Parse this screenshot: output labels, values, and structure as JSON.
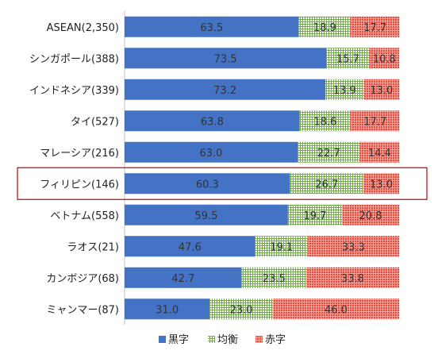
{
  "chart_data": {
    "type": "bar",
    "orientation": "horizontal",
    "stacked": "percent",
    "categories": [
      "ASEAN(2,350)",
      "シンガポール(388)",
      "インドネシア(339)",
      "タイ(527)",
      "マレーシア(216)",
      "フィリピン(146)",
      "ベトナム(558)",
      "ラオス(21)",
      "カンボジア(68)",
      "ミャンマー(87)"
    ],
    "series": [
      {
        "name": "黒字",
        "color": "#4472C4",
        "pattern": "solid",
        "values": [
          63.5,
          73.5,
          73.2,
          63.8,
          63.0,
          60.3,
          59.5,
          47.6,
          42.7,
          31.0
        ]
      },
      {
        "name": "均衡",
        "color": "#70AD47",
        "pattern": "grid",
        "values": [
          18.9,
          15.7,
          13.9,
          18.6,
          22.7,
          26.7,
          19.7,
          19.1,
          23.5,
          23.0
        ]
      },
      {
        "name": "赤字",
        "color": "#E8483A",
        "pattern": "checker",
        "values": [
          17.7,
          10.8,
          13.0,
          17.7,
          14.4,
          13.0,
          20.8,
          33.3,
          33.8,
          46.0
        ]
      }
    ],
    "value_labels": [
      [
        "63.5",
        "73.5",
        "73.2",
        "63.8",
        "63.0",
        "60.3",
        "59.5",
        "47.6",
        "42.7",
        "31.0"
      ],
      [
        "18.9",
        "15.7",
        "13.9",
        "18.6",
        "22.7",
        "26.7",
        "19.7",
        "19.1",
        "23.5",
        "23.0"
      ],
      [
        "17.7",
        "10.8",
        "13.0",
        "17.7",
        "14.4",
        "13.0",
        "20.8",
        "33.3",
        "33.8",
        "46.0"
      ]
    ],
    "xlim": [
      0,
      100
    ],
    "highlighted_category": "フィリピン(146)",
    "highlight_color": "#C00000",
    "legend_position": "bottom",
    "grid": false
  }
}
